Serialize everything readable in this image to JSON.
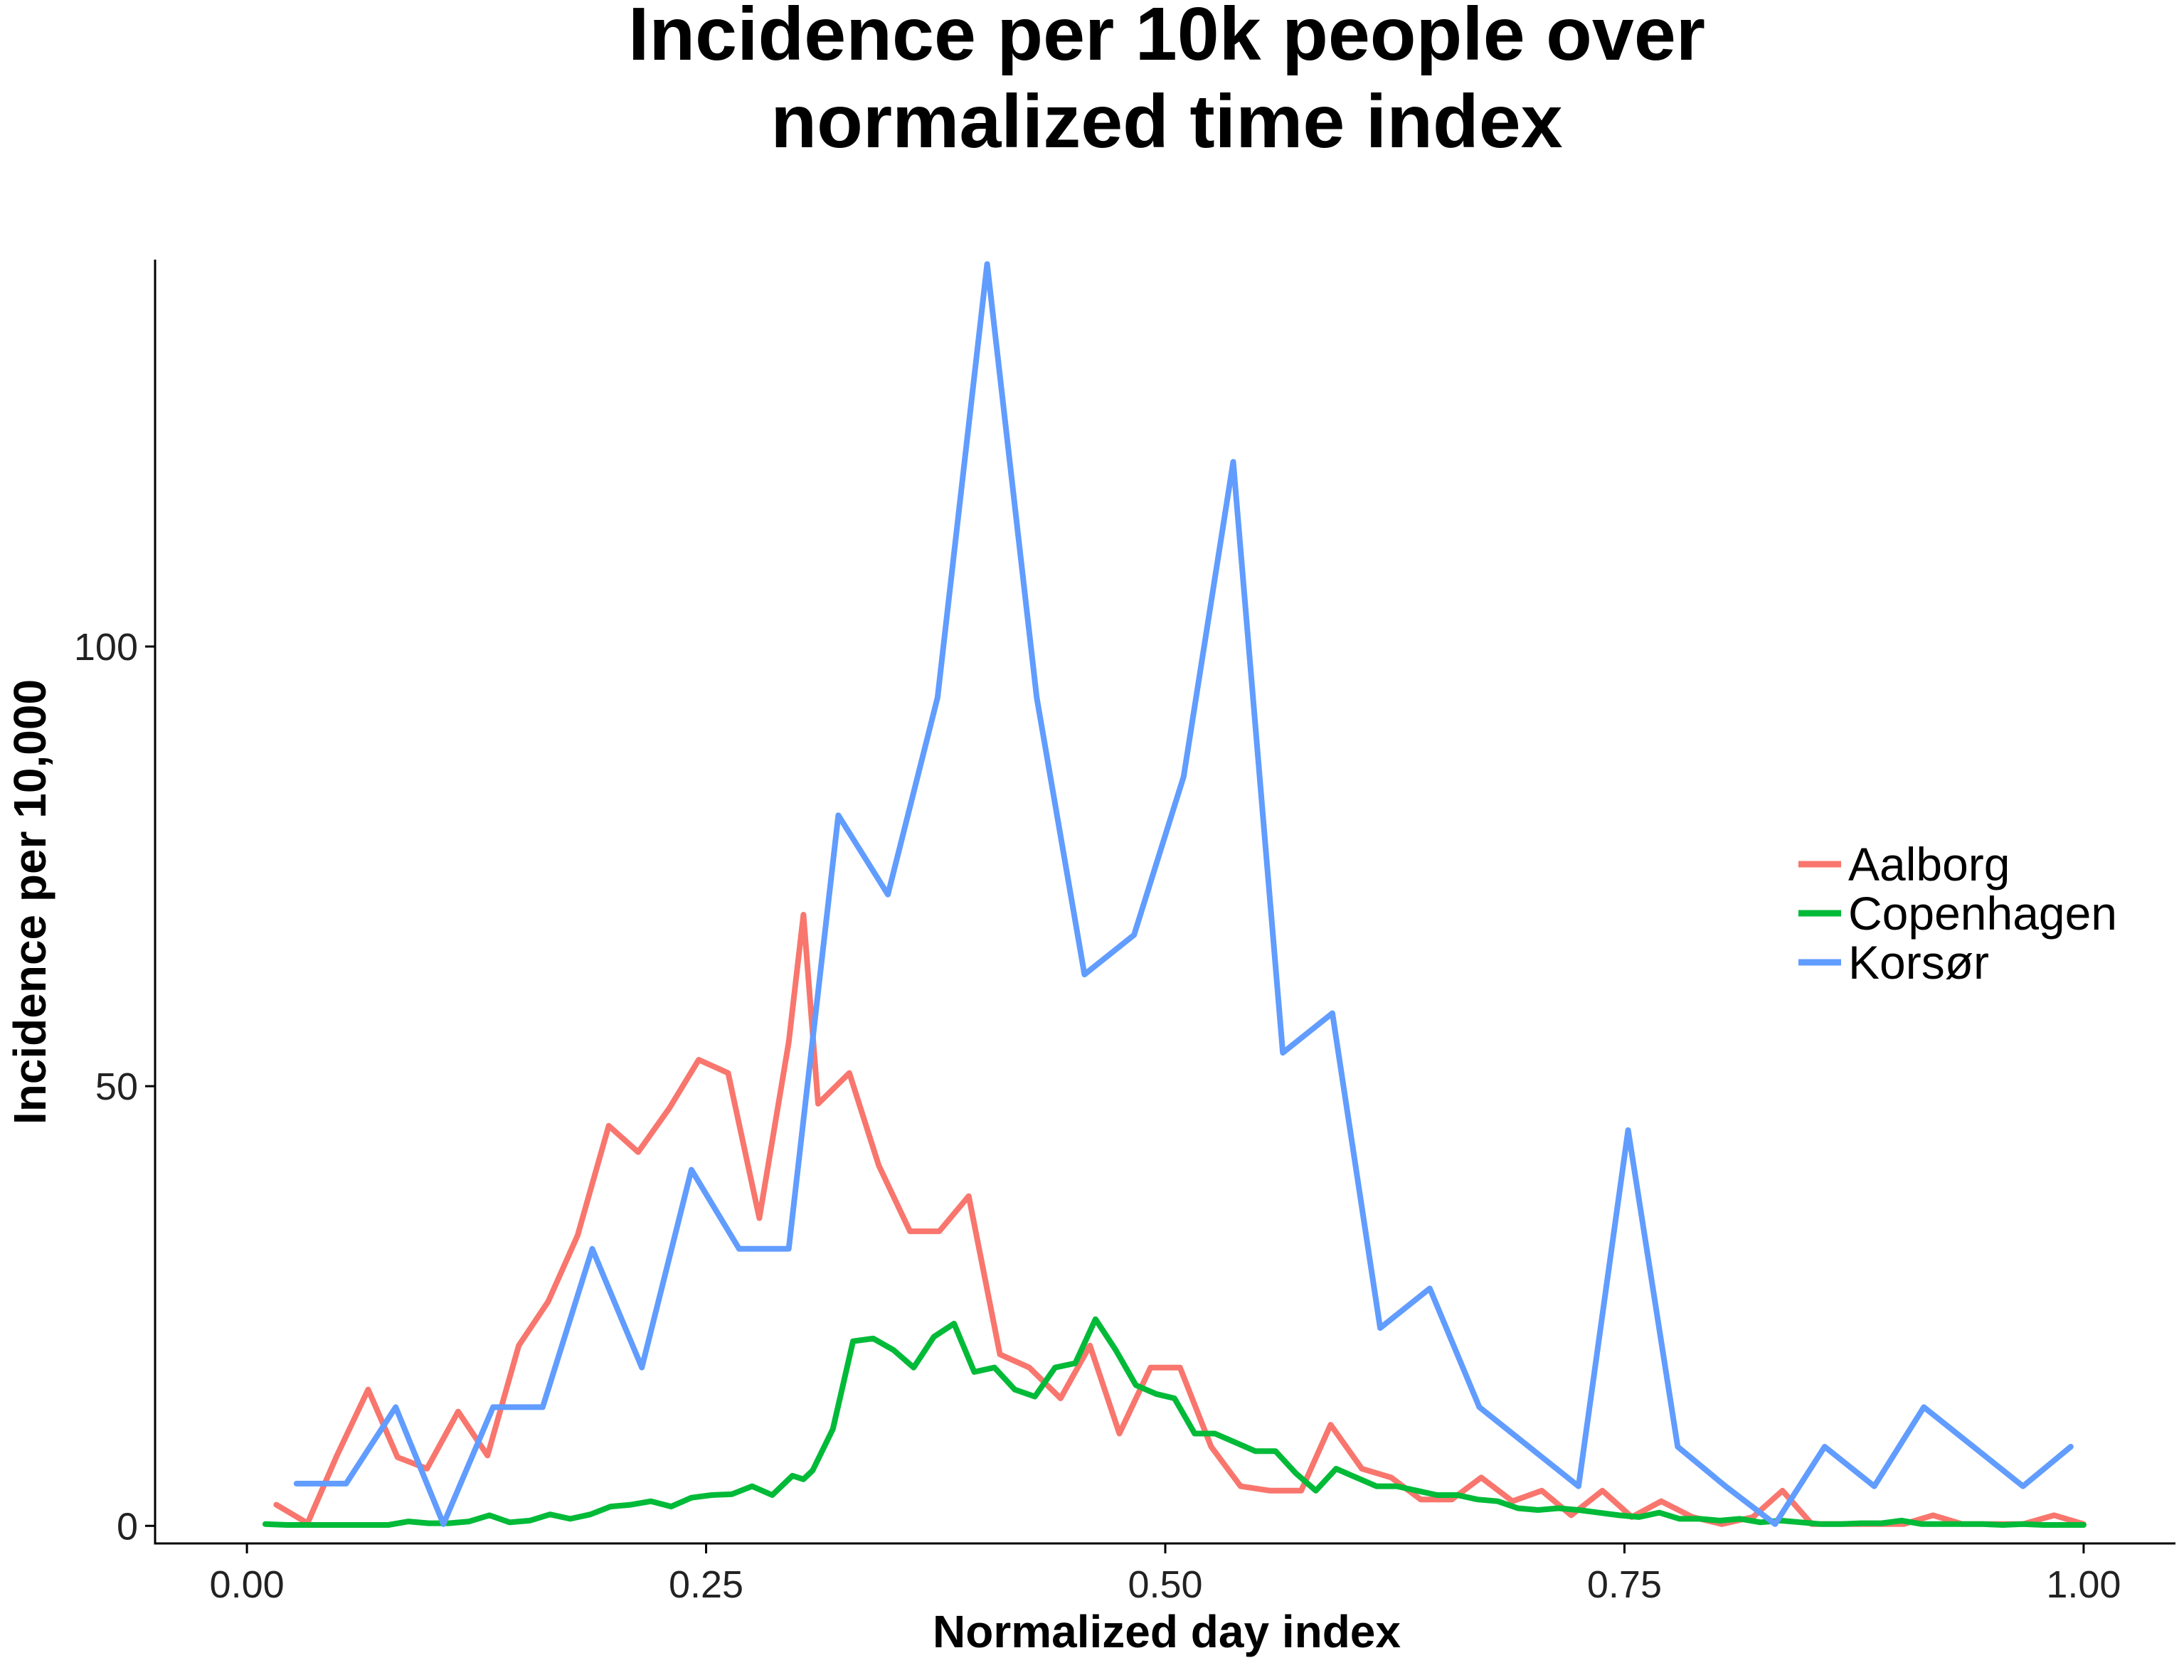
{
  "chart_data": {
    "type": "line",
    "title_lines": [
      "Incidence per 10k people over",
      "normalized time index"
    ],
    "xlabel": "Normalized day index",
    "ylabel": "Incidence per 10,000",
    "xlim": [
      -0.05,
      1.05
    ],
    "ylim": [
      -2,
      144
    ],
    "x_ticks": [
      0.0,
      0.25,
      0.5,
      0.75,
      1.0
    ],
    "x_tick_labels": [
      "0.00",
      "0.25",
      "0.50",
      "0.75",
      "1.00"
    ],
    "y_ticks": [
      0,
      50,
      100
    ],
    "y_tick_labels": [
      "0",
      "50",
      "100"
    ],
    "grid": false,
    "legend_position": "right",
    "series": [
      {
        "name": "Aalborg",
        "color": "#F8766D",
        "x": [
          0.016,
          0.033,
          0.049,
          0.066,
          0.082,
          0.098,
          0.115,
          0.131,
          0.148,
          0.164,
          0.18,
          0.197,
          0.213,
          0.23,
          0.246,
          0.262,
          0.279,
          0.295,
          0.303,
          0.311,
          0.328,
          0.344,
          0.361,
          0.377,
          0.393,
          0.41,
          0.426,
          0.443,
          0.459,
          0.475,
          0.492,
          0.508,
          0.525,
          0.541,
          0.557,
          0.574,
          0.59,
          0.607,
          0.623,
          0.639,
          0.656,
          0.672,
          0.689,
          0.705,
          0.721,
          0.738,
          0.754,
          0.77,
          0.787,
          0.803,
          0.82,
          0.836,
          0.852,
          0.869,
          0.885,
          0.902,
          0.918,
          0.934,
          0.951,
          0.967,
          0.984,
          1.0
        ],
        "values": [
          2.4,
          0.3,
          8.0,
          15.5,
          7.8,
          6.5,
          13.0,
          8.0,
          20.5,
          25.5,
          33.0,
          45.5,
          42.5,
          47.5,
          53.0,
          51.5,
          35.0,
          55.0,
          69.5,
          48.0,
          51.5,
          41.0,
          33.5,
          33.5,
          37.5,
          19.5,
          18.0,
          14.5,
          20.5,
          10.5,
          18.0,
          18.0,
          9.0,
          4.5,
          4.0,
          4.0,
          11.5,
          6.5,
          5.5,
          3.0,
          3.0,
          5.5,
          2.8,
          4.0,
          1.2,
          4.0,
          1.0,
          2.8,
          1.0,
          0.2,
          1.0,
          4.0,
          0.2,
          0.2,
          0.2,
          0.2,
          1.2,
          0.2,
          0.2,
          0.2,
          1.2,
          0.2
        ]
      },
      {
        "name": "Copenhagen",
        "color": "#00BA38",
        "x": [
          0.01,
          0.022,
          0.033,
          0.044,
          0.055,
          0.066,
          0.077,
          0.088,
          0.099,
          0.11,
          0.121,
          0.132,
          0.143,
          0.154,
          0.165,
          0.176,
          0.187,
          0.198,
          0.209,
          0.22,
          0.231,
          0.242,
          0.253,
          0.264,
          0.275,
          0.286,
          0.297,
          0.303,
          0.308,
          0.319,
          0.33,
          0.341,
          0.352,
          0.363,
          0.374,
          0.385,
          0.396,
          0.407,
          0.418,
          0.429,
          0.44,
          0.451,
          0.462,
          0.473,
          0.484,
          0.495,
          0.505,
          0.516,
          0.527,
          0.538,
          0.549,
          0.56,
          0.571,
          0.582,
          0.593,
          0.604,
          0.615,
          0.626,
          0.637,
          0.648,
          0.659,
          0.67,
          0.681,
          0.692,
          0.703,
          0.714,
          0.725,
          0.736,
          0.747,
          0.758,
          0.769,
          0.78,
          0.791,
          0.802,
          0.813,
          0.824,
          0.835,
          0.846,
          0.857,
          0.868,
          0.879,
          0.89,
          0.901,
          0.912,
          0.923,
          0.934,
          0.945,
          0.956,
          0.967,
          0.978,
          0.989,
          1.0
        ],
        "values": [
          0.2,
          0.1,
          0.1,
          0.1,
          0.1,
          0.1,
          0.1,
          0.5,
          0.3,
          0.3,
          0.5,
          1.2,
          0.4,
          0.6,
          1.3,
          0.8,
          1.3,
          2.2,
          2.4,
          2.8,
          2.2,
          3.2,
          3.5,
          3.6,
          4.5,
          3.5,
          5.7,
          5.3,
          6.3,
          11.0,
          21.0,
          21.3,
          20.0,
          18.0,
          21.5,
          23.0,
          17.5,
          18.0,
          15.5,
          14.7,
          18.0,
          18.5,
          23.5,
          20.0,
          16.0,
          15.0,
          14.5,
          10.5,
          10.5,
          9.5,
          8.5,
          8.5,
          6.0,
          4.0,
          6.5,
          5.5,
          4.5,
          4.5,
          4.0,
          3.5,
          3.5,
          3.0,
          2.8,
          2.0,
          1.8,
          2.0,
          1.8,
          1.5,
          1.2,
          1.0,
          1.5,
          0.8,
          0.8,
          0.6,
          0.8,
          0.4,
          0.6,
          0.4,
          0.2,
          0.2,
          0.3,
          0.3,
          0.6,
          0.2,
          0.2,
          0.2,
          0.2,
          0.1,
          0.2,
          0.1,
          0.1,
          0.1
        ]
      },
      {
        "name": "Korsør",
        "color": "#619CFF",
        "x": [
          0.027,
          0.054,
          0.081,
          0.107,
          0.134,
          0.161,
          0.188,
          0.215,
          0.242,
          0.268,
          0.295,
          0.322,
          0.349,
          0.376,
          0.403,
          0.43,
          0.456,
          0.483,
          0.51,
          0.537,
          0.564,
          0.591,
          0.617,
          0.644,
          0.671,
          0.698,
          0.725,
          0.752,
          0.779,
          0.805,
          0.832,
          0.859,
          0.886,
          0.913,
          0.94,
          0.967,
          0.993
        ],
        "values": [
          4.8,
          4.8,
          13.5,
          0.2,
          13.5,
          13.5,
          31.5,
          18.0,
          40.5,
          31.5,
          31.5,
          80.8,
          71.8,
          94.2,
          143.5,
          94.2,
          62.7,
          67.2,
          85.2,
          121.0,
          53.8,
          58.3,
          22.5,
          27.0,
          13.5,
          9.0,
          4.5,
          45.0,
          9.0,
          4.5,
          0.2,
          9.0,
          4.5,
          13.5,
          9.0,
          4.5,
          9.0
        ]
      }
    ]
  }
}
